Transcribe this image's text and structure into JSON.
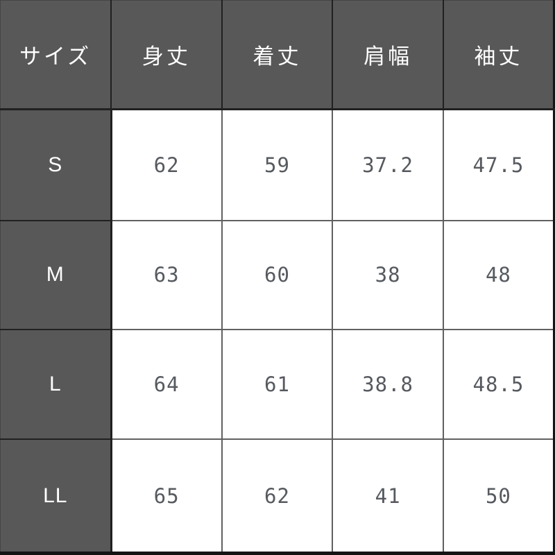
{
  "table": {
    "headers": [
      "サイズ",
      "身丈",
      "着丈",
      "肩幅",
      "袖丈"
    ],
    "rows": [
      {
        "size": "S",
        "values": [
          "62",
          "59",
          "37.2",
          "47.5"
        ]
      },
      {
        "size": "M",
        "values": [
          "63",
          "60",
          "38",
          "48"
        ]
      },
      {
        "size": "L",
        "values": [
          "64",
          "61",
          "38.8",
          "48.5"
        ]
      },
      {
        "size": "LL",
        "values": [
          "65",
          "62",
          "41",
          "50"
        ]
      }
    ]
  },
  "colors": {
    "header_bg": "#585858",
    "header_text": "#ffffff",
    "cell_bg": "#ffffff",
    "cell_text": "#565a5f",
    "grid_line": "#606060",
    "dark_border": "#141414"
  },
  "chart_data": {
    "type": "table",
    "columns": [
      "サイズ",
      "身丈",
      "着丈",
      "肩幅",
      "袖丈"
    ],
    "rows": [
      [
        "S",
        62,
        59,
        37.2,
        47.5
      ],
      [
        "M",
        63,
        60,
        38,
        48
      ],
      [
        "L",
        64,
        61,
        38.8,
        48.5
      ],
      [
        "LL",
        65,
        62,
        41,
        50
      ]
    ],
    "layout": {
      "header_row": "dark-gray with white text",
      "label_column": "dark-gray with white text",
      "grid": "on"
    }
  }
}
